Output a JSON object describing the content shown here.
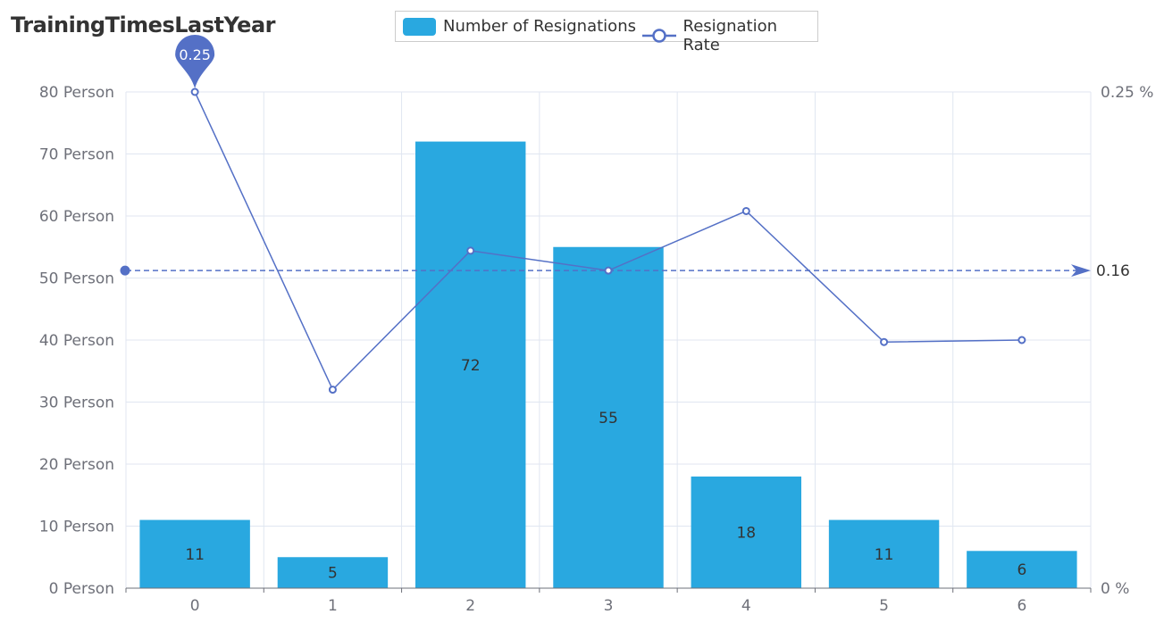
{
  "chart_data": {
    "type": "bar",
    "title": "TrainingTimesLastYear",
    "categories": [
      "0",
      "1",
      "2",
      "3",
      "4",
      "5",
      "6"
    ],
    "series": [
      {
        "name": "Number of Resignations",
        "type": "bar",
        "axis": "left",
        "color": "#29a8e0",
        "values": [
          11,
          5,
          72,
          55,
          18,
          11,
          6
        ],
        "labels": [
          "11",
          "5",
          "72",
          "55",
          "18",
          "11",
          "6"
        ]
      },
      {
        "name": "Resignation Rate",
        "type": "line",
        "axis": "right",
        "color": "#5470c6",
        "values": [
          0.25,
          0.1,
          0.17,
          0.16,
          0.19,
          0.124,
          0.125
        ]
      }
    ],
    "y_left": {
      "min": 0,
      "max": 80,
      "ticks": [
        "0 Person",
        "10 Person",
        "20 Person",
        "30 Person",
        "40 Person",
        "50 Person",
        "60 Person",
        "70 Person",
        "80 Person"
      ]
    },
    "y_right": {
      "min": 0,
      "max": 0.25,
      "ticks": [
        "0 %",
        "0.25 %"
      ]
    },
    "mark_point": {
      "label": "0.25",
      "category": "0",
      "value": 0.25
    },
    "mark_line": {
      "label": "0.16",
      "value": 0.16
    },
    "grid": true,
    "legend_position": "top-center"
  }
}
